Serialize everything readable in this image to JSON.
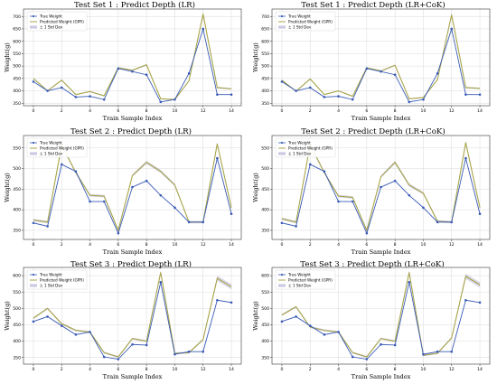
{
  "colors": {
    "true_weight": "#3a5bb6",
    "predicted": "#a8a54a",
    "std_band": "#a9a6cf",
    "grid": "#d9d9d9",
    "axis": "#333333"
  },
  "legend_labels": [
    "True Weight",
    "Predicted Weight (GPR)",
    "± 1 Std Dev"
  ],
  "chart_data": [
    {
      "type": "line",
      "title": "Test Set 1 : Predict Depth (LR)",
      "xlabel": "Train Sample Index",
      "ylabel": "Weight(g)",
      "x": [
        0,
        1,
        2,
        3,
        4,
        5,
        6,
        7,
        8,
        9,
        10,
        11,
        12,
        13,
        14
      ],
      "xlim": [
        -0.7,
        14.7
      ],
      "ylim": [
        340,
        730
      ],
      "xticks": [
        0,
        2,
        4,
        6,
        8,
        10,
        12,
        14
      ],
      "yticks": [
        350,
        400,
        450,
        500,
        550,
        600,
        650,
        700
      ],
      "grid": true,
      "legend": "top-left",
      "series": [
        {
          "name": "True Weight",
          "values": [
            437,
            400,
            413,
            375,
            378,
            365,
            490,
            478,
            465,
            355,
            365,
            470,
            650,
            385,
            385
          ]
        },
        {
          "name": "Predicted Weight (GPR)",
          "values": [
            450,
            400,
            443,
            385,
            397,
            380,
            493,
            483,
            505,
            368,
            365,
            440,
            710,
            413,
            408
          ]
        }
      ],
      "std_dev": [
        3,
        2,
        3,
        2,
        2,
        2,
        3,
        3,
        3,
        2,
        2,
        3,
        8,
        3,
        3
      ]
    },
    {
      "type": "line",
      "title": "Test Set 1 : Predict Depth (LR+CoK)",
      "xlabel": "Train Sample Index",
      "ylabel": "Weight(g)",
      "x": [
        0,
        1,
        2,
        3,
        4,
        5,
        6,
        7,
        8,
        9,
        10,
        11,
        12,
        13,
        14
      ],
      "xlim": [
        -0.7,
        14.7
      ],
      "ylim": [
        340,
        730
      ],
      "xticks": [
        0,
        2,
        4,
        6,
        8,
        10,
        12,
        14
      ],
      "yticks": [
        350,
        400,
        450,
        500,
        550,
        600,
        650,
        700
      ],
      "grid": true,
      "legend": "top-left",
      "series": [
        {
          "name": "True Weight",
          "values": [
            437,
            400,
            413,
            375,
            378,
            365,
            490,
            478,
            465,
            355,
            365,
            470,
            650,
            385,
            385
          ]
        },
        {
          "name": "Predicted Weight (GPR)",
          "values": [
            443,
            398,
            448,
            385,
            400,
            378,
            493,
            480,
            503,
            368,
            373,
            445,
            707,
            413,
            410
          ]
        }
      ],
      "std_dev": [
        3,
        2,
        3,
        2,
        2,
        2,
        3,
        3,
        3,
        2,
        2,
        3,
        8,
        3,
        3
      ]
    },
    {
      "type": "line",
      "title": "Test Set 2 : Predict Depth (LR)",
      "xlabel": "Train Sample Index",
      "ylabel": "Weight(g)",
      "x": [
        0,
        1,
        2,
        3,
        4,
        5,
        6,
        7,
        8,
        9,
        10,
        11,
        12,
        13,
        14
      ],
      "xlim": [
        -0.7,
        14.7
      ],
      "ylim": [
        328,
        580
      ],
      "xticks": [
        0,
        2,
        4,
        6,
        8,
        10,
        12,
        14
      ],
      "yticks": [
        350,
        400,
        450,
        500,
        550
      ],
      "grid": true,
      "legend": "top-left",
      "series": [
        {
          "name": "True Weight",
          "values": [
            368,
            360,
            510,
            493,
            420,
            420,
            343,
            455,
            470,
            435,
            405,
            370,
            370,
            525,
            390
          ]
        },
        {
          "name": "Predicted Weight (GPR)",
          "values": [
            375,
            370,
            557,
            490,
            435,
            433,
            350,
            483,
            515,
            493,
            460,
            370,
            370,
            560,
            405
          ]
        }
      ],
      "std_dev": [
        3,
        3,
        4,
        3,
        3,
        3,
        3,
        3,
        4,
        4,
        3,
        3,
        3,
        4,
        3
      ]
    },
    {
      "type": "line",
      "title": "Test Set 2 : Predict Depth (LR+CoK)",
      "xlabel": "Train Sample Index",
      "ylabel": "Weight(g)",
      "x": [
        0,
        1,
        2,
        3,
        4,
        5,
        6,
        7,
        8,
        9,
        10,
        11,
        12,
        13,
        14
      ],
      "xlim": [
        -0.7,
        14.7
      ],
      "ylim": [
        328,
        580
      ],
      "xticks": [
        0,
        2,
        4,
        6,
        8,
        10,
        12,
        14
      ],
      "yticks": [
        350,
        400,
        450,
        500,
        550
      ],
      "grid": true,
      "legend": "top-left",
      "series": [
        {
          "name": "True Weight",
          "values": [
            368,
            360,
            510,
            493,
            420,
            420,
            343,
            455,
            470,
            435,
            405,
            370,
            370,
            525,
            390
          ]
        },
        {
          "name": "Predicted Weight (GPR)",
          "values": [
            378,
            370,
            558,
            490,
            433,
            430,
            350,
            480,
            515,
            460,
            440,
            372,
            370,
            563,
            405
          ]
        }
      ],
      "std_dev": [
        3,
        3,
        4,
        3,
        3,
        3,
        3,
        3,
        4,
        4,
        3,
        3,
        3,
        4,
        3
      ]
    },
    {
      "type": "line",
      "title": "Test Set 3 : Predict Depth (LR)",
      "xlabel": "Train Sample Index",
      "ylabel": "Weight(g)",
      "x": [
        0,
        1,
        2,
        3,
        4,
        5,
        6,
        7,
        8,
        9,
        10,
        11,
        12,
        13,
        14
      ],
      "xlim": [
        -0.7,
        14.7
      ],
      "ylim": [
        330,
        625
      ],
      "xticks": [
        0,
        2,
        4,
        6,
        8,
        10,
        12,
        14
      ],
      "yticks": [
        350,
        400,
        450,
        500,
        550,
        600
      ],
      "grid": true,
      "legend": "top-left",
      "series": [
        {
          "name": "True Weight",
          "values": [
            460,
            475,
            447,
            420,
            428,
            352,
            345,
            390,
            388,
            580,
            360,
            368,
            368,
            525,
            518
          ]
        },
        {
          "name": "Predicted Weight (GPR)",
          "values": [
            470,
            500,
            453,
            433,
            428,
            365,
            352,
            408,
            400,
            610,
            363,
            365,
            405,
            592,
            566
          ]
        }
      ],
      "std_dev": [
        3,
        3,
        3,
        3,
        3,
        3,
        3,
        3,
        3,
        6,
        3,
        3,
        3,
        8,
        8
      ]
    },
    {
      "type": "line",
      "title": "Test Set 3 : Predict Depth (LR+CoK)",
      "xlabel": "Train Sample Index",
      "ylabel": "Weight(g)",
      "x": [
        0,
        1,
        2,
        3,
        4,
        5,
        6,
        7,
        8,
        9,
        10,
        11,
        12,
        13,
        14
      ],
      "xlim": [
        -0.7,
        14.7
      ],
      "ylim": [
        330,
        625
      ],
      "xticks": [
        0,
        2,
        4,
        6,
        8,
        10,
        12,
        14
      ],
      "yticks": [
        350,
        400,
        450,
        500,
        550,
        600
      ],
      "grid": true,
      "legend": "top-left",
      "series": [
        {
          "name": "True Weight",
          "values": [
            460,
            475,
            447,
            420,
            428,
            352,
            345,
            390,
            388,
            580,
            360,
            368,
            368,
            525,
            518
          ]
        },
        {
          "name": "Predicted Weight (GPR)",
          "values": [
            480,
            505,
            443,
            433,
            428,
            365,
            352,
            408,
            400,
            610,
            357,
            363,
            410,
            598,
            572
          ]
        }
      ],
      "std_dev": [
        3,
        3,
        3,
        3,
        3,
        3,
        3,
        3,
        3,
        6,
        3,
        3,
        3,
        8,
        8
      ]
    }
  ]
}
